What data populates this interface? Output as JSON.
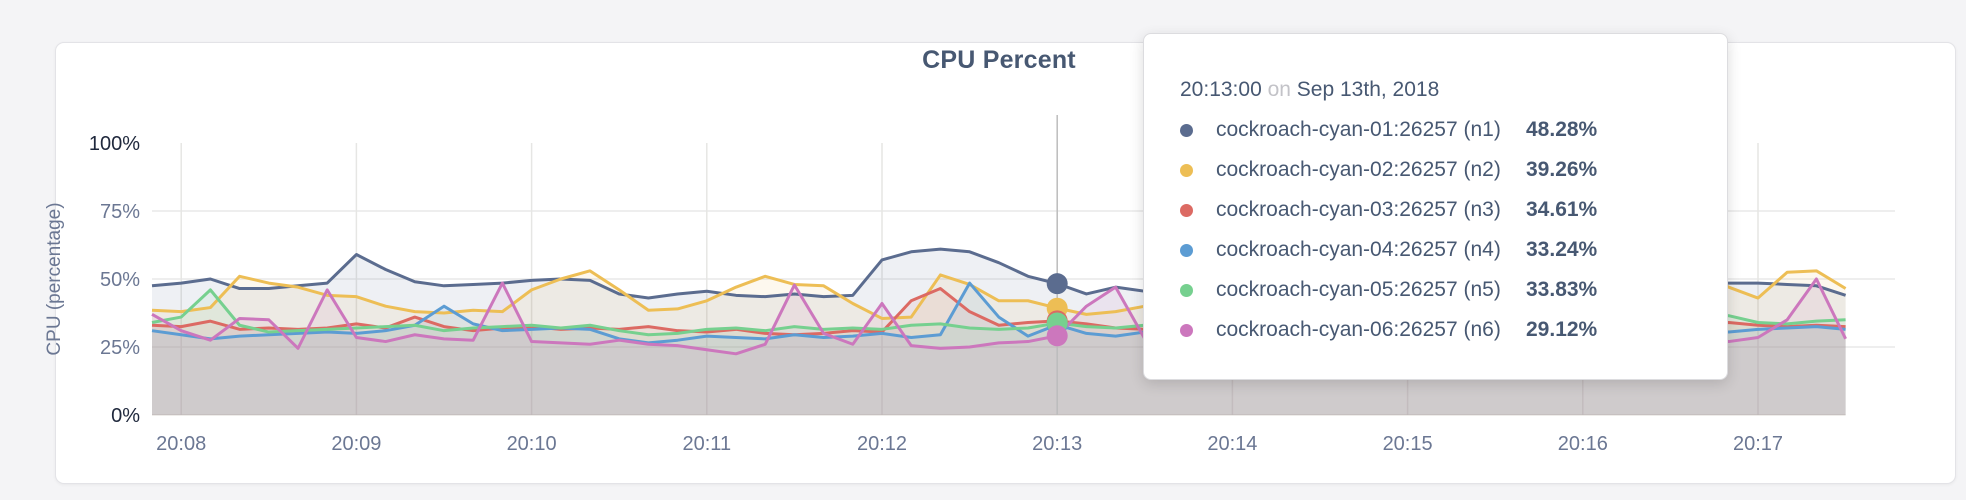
{
  "title": "CPU Percent",
  "tooltip": {
    "time": "20:13:00",
    "on_word": "on",
    "date": "Sep 13th, 2018",
    "rows": [
      {
        "label": "cockroach-cyan-01:26257 (n1)",
        "value": "48.28%",
        "color": "#5b6c8f"
      },
      {
        "label": "cockroach-cyan-02:26257 (n2)",
        "value": "39.26%",
        "color": "#edbe55"
      },
      {
        "label": "cockroach-cyan-03:26257 (n3)",
        "value": "34.61%",
        "color": "#dc6a63"
      },
      {
        "label": "cockroach-cyan-04:26257 (n4)",
        "value": "33.24%",
        "color": "#5c9cd3"
      },
      {
        "label": "cockroach-cyan-05:26257 (n5)",
        "value": "33.83%",
        "color": "#76d08f"
      },
      {
        "label": "cockroach-cyan-06:26257 (n6)",
        "value": "29.12%",
        "color": "#cc77bd"
      }
    ]
  },
  "chart_data": {
    "type": "line",
    "title": "CPU Percent",
    "ylabel": "CPU (percentage)",
    "ylim": [
      0,
      100
    ],
    "grid": true,
    "y_ticks": [
      {
        "value": 0,
        "label": "0%",
        "dark": true,
        "gridline": false
      },
      {
        "value": 25,
        "label": "25%",
        "dark": false,
        "gridline": true
      },
      {
        "value": 50,
        "label": "50%",
        "dark": false,
        "gridline": true
      },
      {
        "value": 75,
        "label": "75%",
        "dark": false,
        "gridline": true
      },
      {
        "value": 100,
        "label": "100%",
        "dark": true,
        "gridline": false
      }
    ],
    "x_tick_labels": [
      "20:08",
      "20:09",
      "20:10",
      "20:11",
      "20:12",
      "20:13",
      "20:14",
      "20:15",
      "20:16",
      "20:17"
    ],
    "x_start": "20:07:50",
    "x_interval_seconds": 10,
    "hover_index": 31,
    "hover_time": "20:13:00",
    "series": [
      {
        "name": "cockroach-cyan-01:26257 (n1)",
        "color": "#5b6c8f",
        "values": [
          47.5,
          48.5,
          50,
          46.5,
          46.5,
          47.5,
          48.5,
          59,
          53.5,
          49,
          47.5,
          48,
          48.5,
          49.5,
          50,
          49.5,
          44.5,
          43,
          44.5,
          45.5,
          44,
          43.5,
          44.5,
          43.5,
          44,
          57,
          60,
          61,
          60,
          56,
          51,
          48.3,
          44.5,
          47,
          45.5,
          46.5,
          45,
          47,
          46.5,
          48,
          45.5,
          46.5,
          47.5,
          45,
          46,
          47.5,
          46.5,
          45.5,
          47,
          46.5,
          47.5,
          48,
          48.5,
          48.5,
          48.5,
          48.5,
          48,
          47.5,
          44
        ]
      },
      {
        "name": "cockroach-cyan-02:26257 (n2)",
        "color": "#edbe55",
        "values": [
          38.5,
          38,
          39.5,
          51,
          48.5,
          47,
          44,
          43.5,
          40,
          38,
          37.5,
          38.5,
          38,
          46,
          50,
          53,
          46,
          38.5,
          39,
          42,
          47,
          51,
          48,
          47.5,
          41,
          35.5,
          36,
          51.5,
          48,
          42,
          42,
          39.3,
          37,
          38,
          40,
          43,
          41,
          39,
          42,
          45,
          44,
          40,
          38,
          41,
          44,
          46,
          43,
          40,
          42,
          46,
          49,
          52,
          48,
          52,
          47,
          43,
          52.5,
          53,
          46.5
        ]
      },
      {
        "name": "cockroach-cyan-03:26257 (n3)",
        "color": "#dc6a63",
        "values": [
          33,
          32.5,
          34.5,
          31.5,
          32,
          31.5,
          32,
          33.5,
          32,
          36,
          32.5,
          31,
          32,
          32.5,
          31.5,
          32,
          31.5,
          32.5,
          31,
          30.5,
          31.5,
          30,
          29.5,
          30,
          31,
          30.5,
          42,
          46.5,
          38,
          33,
          34,
          34.6,
          33.5,
          32,
          31.5,
          33,
          32,
          31,
          32.5,
          33,
          31.5,
          32,
          33.5,
          32,
          31,
          32.5,
          33,
          32,
          31.5,
          33,
          34,
          33.5,
          32.5,
          33.5,
          34,
          33,
          32.5,
          33,
          32.5
        ]
      },
      {
        "name": "cockroach-cyan-04:26257 (n4)",
        "color": "#5c9cd3",
        "values": [
          31,
          29.5,
          28,
          29,
          29.5,
          30,
          30.5,
          30,
          31,
          33,
          40,
          33.5,
          31,
          31.5,
          32,
          31.5,
          28,
          26.5,
          27.5,
          29,
          28.5,
          28,
          29.5,
          28.5,
          29,
          30,
          28.5,
          29.5,
          48.5,
          36,
          29,
          33.2,
          30,
          29,
          30.5,
          29.5,
          28,
          29.5,
          31,
          30,
          29,
          30.5,
          29.5,
          28.5,
          30,
          31,
          29.5,
          30,
          31.5,
          30.5,
          29.5,
          31,
          30.5,
          31,
          30.5,
          31.5,
          32,
          32.5,
          31.5
        ]
      },
      {
        "name": "cockroach-cyan-05:26257 (n5)",
        "color": "#76d08f",
        "values": [
          34,
          36,
          46,
          33,
          30.5,
          31,
          31.5,
          32,
          32.5,
          33,
          31,
          32,
          32.5,
          33,
          32,
          33,
          31,
          29.5,
          30,
          31.5,
          32,
          31,
          32.5,
          31.5,
          32,
          31.5,
          33,
          33.5,
          32,
          31.5,
          32,
          33.8,
          32.5,
          32,
          33,
          31.5,
          32.5,
          33.5,
          32,
          31,
          32.5,
          33,
          32,
          31.5,
          33,
          32.5,
          31.5,
          32,
          33,
          34,
          33,
          32,
          33.5,
          38,
          36.5,
          34,
          33.5,
          34.5,
          35
        ]
      },
      {
        "name": "cockroach-cyan-06:26257 (n6)",
        "color": "#cc77bd",
        "values": [
          37,
          31,
          27.5,
          35.5,
          35,
          24.5,
          46,
          28.5,
          27,
          29.5,
          28,
          27.5,
          48.5,
          27,
          26.5,
          26,
          27.5,
          26,
          25.5,
          24,
          22.5,
          26,
          47.8,
          30,
          26,
          41,
          25.5,
          24.5,
          25,
          26.5,
          27,
          29.1,
          40,
          47,
          28,
          26.5,
          27.5,
          26,
          28,
          27.5,
          26,
          27.5,
          28.5,
          27,
          26,
          27.5,
          28,
          26.5,
          27,
          28.5,
          27.5,
          26.5,
          27,
          27.5,
          27,
          28.5,
          35,
          50,
          28
        ]
      }
    ]
  },
  "colors": {
    "axis_text": "#6b7793",
    "axis_text_dark": "#20293d",
    "grid": "#e9e9e9",
    "grid_vertical": "#e6e6e4",
    "hover_line": "#bdbdbd",
    "title_text": "#475872"
  }
}
